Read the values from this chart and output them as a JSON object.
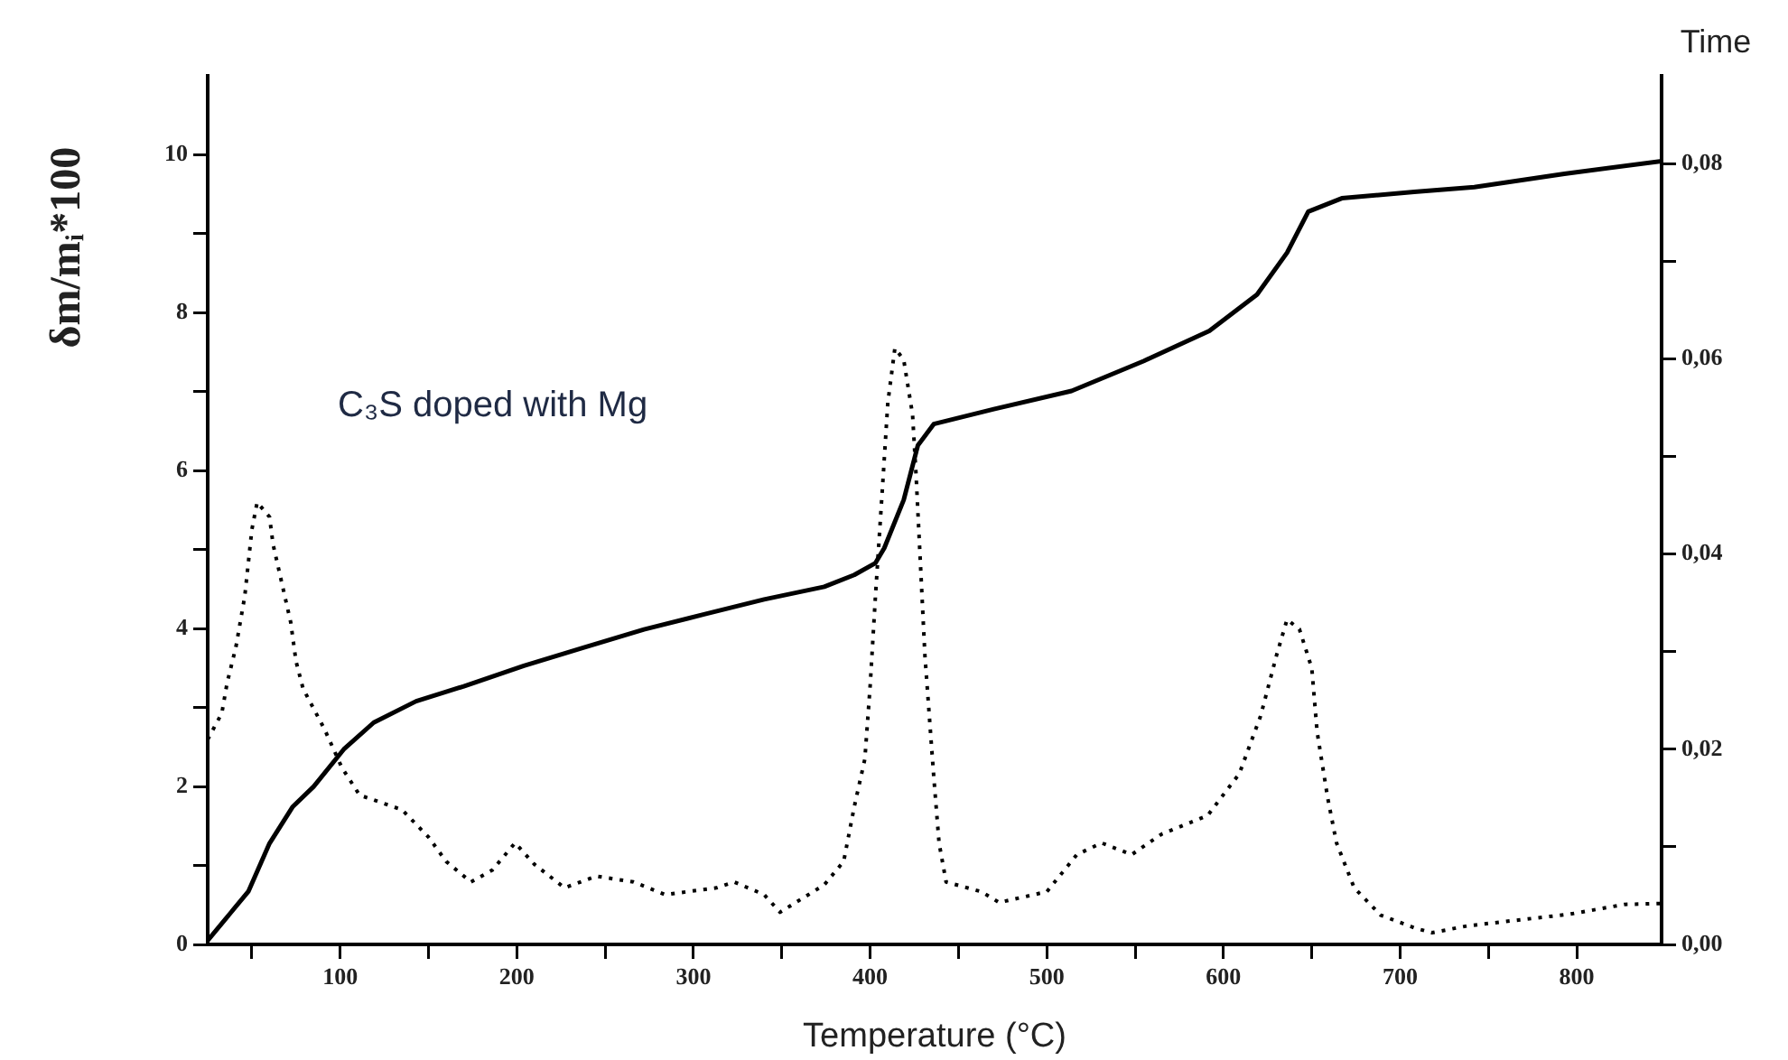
{
  "chart_data": {
    "type": "line",
    "xlabel": "Temperature (°C)",
    "ylabel": "δm/mᵢ*100",
    "y2label": "Time",
    "annotations": [
      "C₃S doped with Mg"
    ],
    "xlim": [
      25,
      848
    ],
    "ylim": [
      0,
      11
    ],
    "y2lim": [
      0,
      0.089
    ],
    "xticks": [
      {
        "value": 50,
        "label": null
      },
      100,
      {
        "value": 150,
        "label": null
      },
      200,
      {
        "value": 250,
        "label": null
      },
      300,
      {
        "value": 350,
        "label": null
      },
      400,
      {
        "value": 450,
        "label": null
      },
      500,
      {
        "value": 550,
        "label": null
      },
      600,
      {
        "value": 650,
        "label": null
      },
      700,
      {
        "value": 750,
        "label": null
      },
      800
    ],
    "yticks": [
      0,
      {
        "value": 1,
        "label": null
      },
      2,
      {
        "value": 3,
        "label": null
      },
      4,
      {
        "value": 5,
        "label": null
      },
      6,
      {
        "value": 7,
        "label": null
      },
      8,
      {
        "value": 9,
        "label": null
      },
      10
    ],
    "y2ticks": [
      {
        "value": 0,
        "label": "0,00"
      },
      {
        "value": 0.01,
        "label": null
      },
      {
        "value": 0.02,
        "label": "0,02"
      },
      {
        "value": 0.03,
        "label": null
      },
      {
        "value": 0.04,
        "label": "0,04"
      },
      {
        "value": 0.05,
        "label": null
      },
      {
        "value": 0.06,
        "label": "0,06"
      },
      {
        "value": 0.07,
        "label": null
      },
      {
        "value": 0.08,
        "label": "0,08"
      }
    ],
    "grid": false,
    "legend": false,
    "marker": "none",
    "series": [
      {
        "color": "#000000",
        "line_style": "solid",
        "x": [
          25,
          48,
          60,
          73,
          85,
          102,
          119,
          143,
          170,
          204,
          238,
          272,
          306,
          340,
          374,
          391,
          403,
          408,
          419,
          427,
          436,
          470,
          514,
          555,
          592,
          619,
          636,
          648,
          667,
          708,
          742,
          793,
          848
        ],
        "values": [
          0.05,
          0.67,
          1.28,
          1.74,
          2.0,
          2.47,
          2.81,
          3.08,
          3.27,
          3.53,
          3.76,
          3.99,
          4.18,
          4.37,
          4.53,
          4.68,
          4.83,
          5.02,
          5.63,
          6.32,
          6.59,
          6.78,
          7.01,
          7.39,
          7.77,
          8.23,
          8.76,
          9.28,
          9.45,
          9.53,
          9.59,
          9.76,
          9.92
        ]
      },
      {
        "color": "#000000",
        "line_style": "dotted",
        "axis": "y2",
        "x": [
          25,
          33,
          36,
          41,
          46,
          50,
          53,
          60,
          62,
          67,
          72,
          75,
          79,
          91,
          101,
          111,
          135,
          150,
          160,
          174,
          186,
          199,
          210,
          227,
          245,
          266,
          284,
          313,
          323,
          340,
          349,
          357,
          374,
          385,
          391,
          397,
          400,
          403,
          407,
          410,
          414,
          419,
          424,
          426,
          431,
          436,
          439,
          443,
          463,
          473,
          500,
          517,
          531,
          548,
          565,
          591,
          609,
          621,
          630,
          636,
          643,
          650,
          653,
          659,
          664,
          674,
          689,
          708,
          718,
          738,
          767,
          796,
          827,
          848
        ],
        "values": [
          0.021,
          0.0237,
          0.0268,
          0.0305,
          0.0357,
          0.0425,
          0.0453,
          0.0438,
          0.041,
          0.037,
          0.033,
          0.029,
          0.0262,
          0.0221,
          0.0181,
          0.0153,
          0.0138,
          0.011,
          0.0085,
          0.0064,
          0.0076,
          0.0104,
          0.0082,
          0.0058,
          0.007,
          0.0064,
          0.0051,
          0.0058,
          0.0064,
          0.0051,
          0.0033,
          0.0042,
          0.0061,
          0.0085,
          0.0141,
          0.019,
          0.0265,
          0.0357,
          0.0469,
          0.0555,
          0.0611,
          0.0599,
          0.0543,
          0.0481,
          0.0296,
          0.0172,
          0.0104,
          0.0064,
          0.0054,
          0.0043,
          0.0054,
          0.0092,
          0.0104,
          0.0092,
          0.0113,
          0.0132,
          0.0175,
          0.0234,
          0.0296,
          0.0333,
          0.0323,
          0.0283,
          0.0218,
          0.015,
          0.0104,
          0.0058,
          0.003,
          0.0017,
          0.0012,
          0.0019,
          0.0025,
          0.0031,
          0.0041,
          0.0042
        ]
      }
    ]
  }
}
